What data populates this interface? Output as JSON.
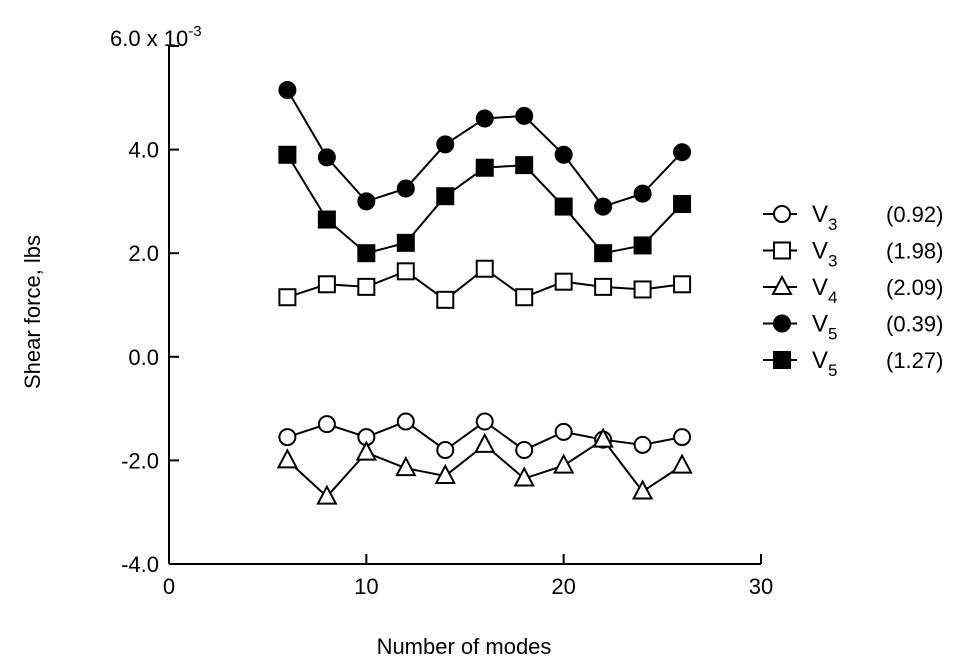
{
  "chart_data": {
    "type": "line",
    "xlabel": "Number of modes",
    "ylabel": "Shear force, lbs",
    "y_multiplier": "6.0 x 10",
    "y_exponent": "-3",
    "xlim": [
      0,
      30
    ],
    "ylim": [
      -4.0,
      6.0
    ],
    "x_ticks": [
      0,
      10,
      20,
      30
    ],
    "x_tick_labels": [
      "0",
      "10",
      "20",
      "30"
    ],
    "y_ticks": [
      -4.0,
      -2.0,
      0.0,
      2.0,
      4.0
    ],
    "y_tick_labels": [
      "-4.0",
      "-2.0",
      "0.0",
      "2.0",
      "4.0"
    ],
    "grid": false,
    "legend_position": "right",
    "x": [
      6,
      8,
      10,
      12,
      14,
      16,
      18,
      20,
      22,
      24,
      26
    ],
    "series": [
      {
        "name": "V",
        "subscript": "3",
        "param": "(0.92)",
        "marker": "circle-open",
        "values": [
          -1.55,
          -1.3,
          -1.55,
          -1.25,
          -1.8,
          -1.25,
          -1.8,
          -1.45,
          -1.6,
          -1.7,
          -1.55
        ]
      },
      {
        "name": "V",
        "subscript": "3",
        "param": "(1.98)",
        "marker": "square-open",
        "values": [
          1.15,
          1.4,
          1.35,
          1.65,
          1.1,
          1.7,
          1.15,
          1.45,
          1.35,
          1.3,
          1.4
        ]
      },
      {
        "name": "V",
        "subscript": "4",
        "param": "(2.09)",
        "marker": "triangle-open",
        "values": [
          -2.0,
          -2.7,
          -1.85,
          -2.15,
          -2.3,
          -1.7,
          -2.35,
          -2.1,
          -1.6,
          -2.6,
          -2.1
        ]
      },
      {
        "name": "V",
        "subscript": "5",
        "param": "(0.39)",
        "marker": "circle-filled",
        "values": [
          5.15,
          3.85,
          3.0,
          3.25,
          4.1,
          4.6,
          4.65,
          3.9,
          2.9,
          3.15,
          3.95
        ]
      },
      {
        "name": "V",
        "subscript": "5",
        "param": "(1.27)",
        "marker": "square-filled",
        "values": [
          3.9,
          2.65,
          2.0,
          2.2,
          3.1,
          3.65,
          3.7,
          2.9,
          2.0,
          2.15,
          2.95
        ]
      }
    ]
  }
}
